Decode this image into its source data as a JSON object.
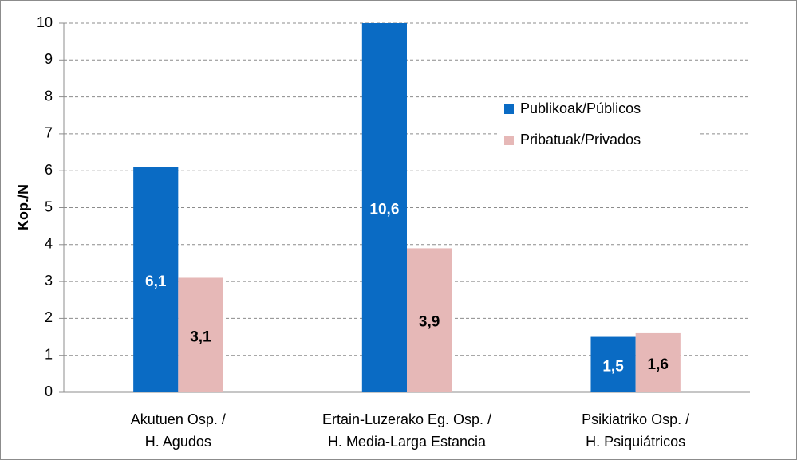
{
  "chart_data": {
    "type": "bar",
    "y_label": "Kop./N",
    "categories": [
      [
        "Akutuen Osp. /",
        "H. Agudos"
      ],
      [
        "Ertain-Luzerako Eg. Osp. /",
        "H. Media-Larga Estancia"
      ],
      [
        "Psikiatriko Osp. /",
        "H. Psiquiátricos"
      ]
    ],
    "series": [
      {
        "name": "Publikoak/Públicos",
        "color": "#0a6bc4",
        "label_color": "#ffffff",
        "values": [
          6.1,
          10.6,
          1.5
        ],
        "value_labels": [
          "6,1",
          "10,6",
          "1,5"
        ]
      },
      {
        "name": "Pribatuak/Privados",
        "color": "#e6b8b7",
        "label_color": "#000000",
        "values": [
          3.1,
          3.9,
          1.6
        ],
        "value_labels": [
          "3,1",
          "3,9",
          "1,6"
        ]
      }
    ],
    "ylim": [
      0,
      10
    ],
    "yticks": [
      0,
      1,
      2,
      3,
      4,
      5,
      6,
      7,
      8,
      9,
      10
    ],
    "grid": true,
    "legend": "upper right"
  }
}
